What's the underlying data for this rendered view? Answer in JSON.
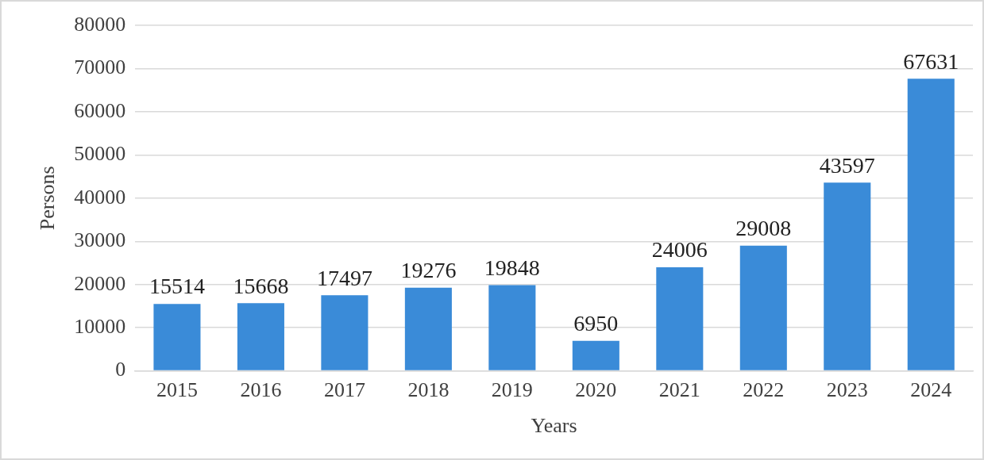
{
  "chart_data": {
    "type": "bar",
    "xlabel": "Years",
    "ylabel": "Persons",
    "categories": [
      "2015",
      "2016",
      "2017",
      "2018",
      "2019",
      "2020",
      "2021",
      "2022",
      "2023",
      "2024"
    ],
    "values": [
      15514,
      15668,
      17497,
      19276,
      19848,
      6950,
      24006,
      29008,
      43597,
      67631
    ],
    "color": "#3a8bd8",
    "ylim": [
      0,
      80000
    ],
    "yticks": [
      0,
      10000,
      20000,
      30000,
      40000,
      50000,
      60000,
      70000,
      80000
    ],
    "grid": "y",
    "legend": false,
    "data_labels": true
  }
}
